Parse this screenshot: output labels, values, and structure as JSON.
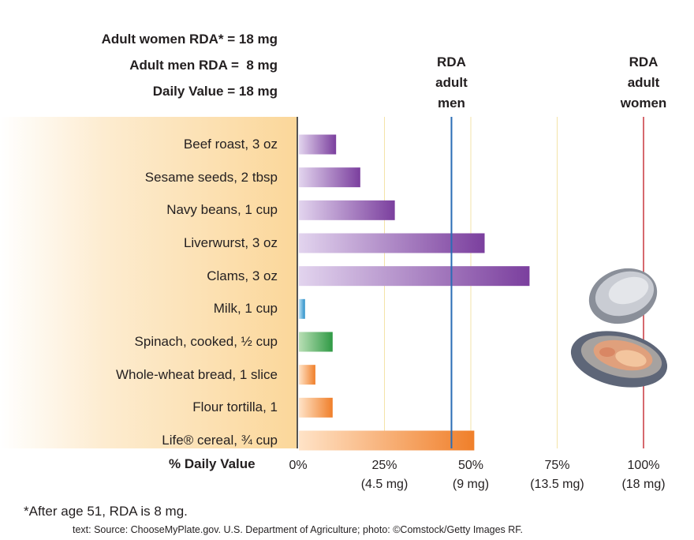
{
  "rda_header": [
    {
      "label": "Adult women RDA* = 18 mg"
    },
    {
      "label": "Adult men RDA =  8 mg"
    },
    {
      "label": "Daily Value = 18 mg"
    }
  ],
  "reference_lines": {
    "men": {
      "label": "RDA\nadult\nmen",
      "value": 44.4,
      "color": "#2a6db5"
    },
    "women": {
      "label": "RDA\nadult\nwomen",
      "value": 100,
      "color": "#c8373f"
    }
  },
  "chart_data": {
    "type": "bar",
    "orientation": "horizontal",
    "title": "",
    "xlabel": "% Daily Value",
    "xlim": [
      0,
      100
    ],
    "categories": [
      "Beef roast, 3 oz",
      "Sesame seeds, 2 tbsp",
      "Navy beans, 1 cup",
      "Liverwurst, 3 oz",
      "Clams, 3 oz",
      "Milk, 1 cup",
      "Spinach, cooked, ½ cup",
      "Whole-wheat bread, 1 slice",
      "Flour tortilla, 1",
      "Life® cereal, ¾ cup"
    ],
    "values": [
      11,
      18,
      28,
      54,
      67,
      2,
      10,
      5,
      10,
      51
    ],
    "colors": [
      "purple",
      "purple",
      "purple",
      "purple",
      "purple",
      "blue",
      "green",
      "orange",
      "orange",
      "orange"
    ],
    "ticks": [
      {
        "value": 0,
        "label": "0%",
        "sub": ""
      },
      {
        "value": 25,
        "label": "25%",
        "sub": "(4.5 mg)"
      },
      {
        "value": 50,
        "label": "50%",
        "sub": "(9 mg)"
      },
      {
        "value": 75,
        "label": "75%",
        "sub": "(13.5 mg)"
      },
      {
        "value": 100,
        "label": "100%",
        "sub": "(18 mg)"
      }
    ]
  },
  "footnote": "*After age 51, RDA is 8 mg.",
  "credit": "text: Source: ChooseMyPlate.gov. U.S. Department of Agriculture; photo: ©Comstock/Getty Images RF.",
  "palette": {
    "purple": [
      "#e2d4ee",
      "#7b3f9e"
    ],
    "blue": [
      "#bfe3f5",
      "#2a8fc9"
    ],
    "green": [
      "#b9dfb5",
      "#2f9a45"
    ],
    "orange": [
      "#ffe3c7",
      "#f07f2a"
    ]
  }
}
